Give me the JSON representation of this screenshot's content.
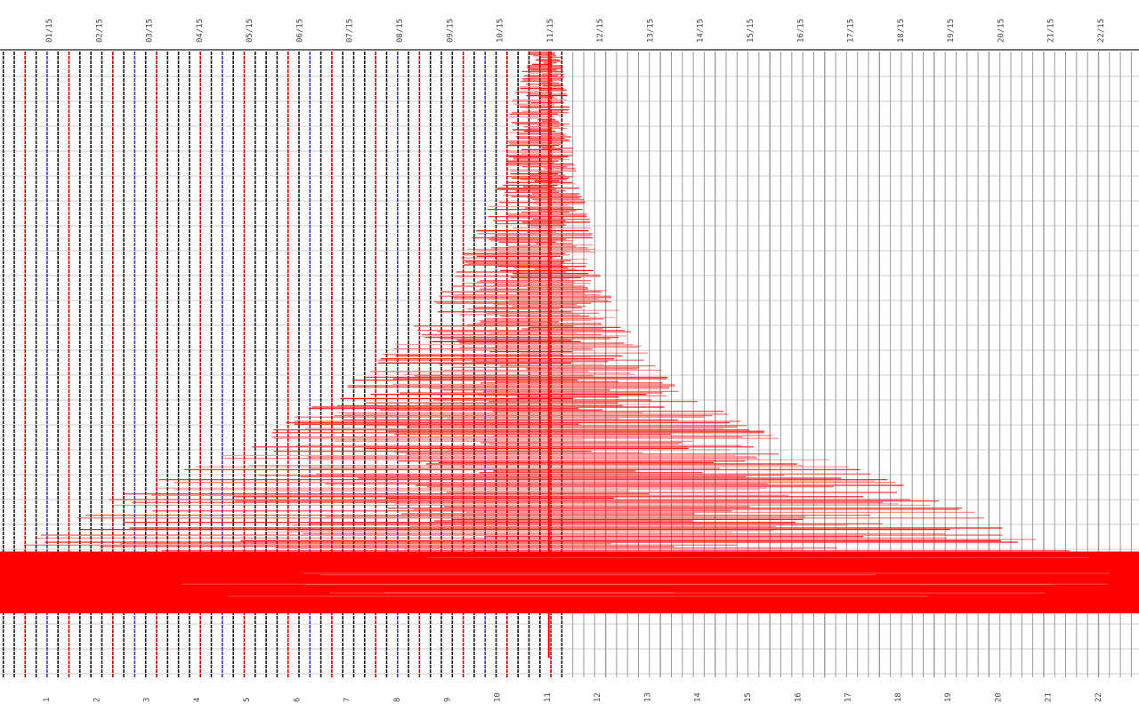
{
  "chart_data": {
    "type": "line",
    "title": "",
    "xlabel": "",
    "ylabel": "",
    "grid": true,
    "legend": "none",
    "top_tick_labels": [
      "01/15",
      "02/15",
      "03/15",
      "04/15",
      "05/15",
      "06/15",
      "07/15",
      "08/15",
      "09/15",
      "10/15",
      "11/15",
      "12/15",
      "13/15",
      "14/15",
      "15/15",
      "16/15",
      "17/15",
      "18/15",
      "19/15",
      "20/15",
      "21/15",
      "22/15"
    ],
    "bottom_tick_labels": [
      "1",
      "2",
      "3",
      "4",
      "5",
      "6",
      "7",
      "8",
      "9",
      "10",
      "11",
      "12",
      "13",
      "14",
      "15",
      "16",
      "17",
      "18",
      "19",
      "20",
      "21",
      "22"
    ],
    "trace_count": 104,
    "recorded_trace_count": 52,
    "trace_colors": {
      "black": "#1a1a1a",
      "red": "#c00000",
      "blue": "#3a3aa8",
      "empty": "#9a9a9a"
    },
    "trace_pattern": [
      "black",
      "black",
      "red",
      "black",
      "blue",
      "black",
      "red",
      "black"
    ],
    "series": [
      {
        "color": "#ff0000",
        "x_range": [
          0,
          22
        ],
        "center": 10.6,
        "profile": [
          {
            "depth": 0.0,
            "left": 10.2,
            "right": 10.85
          },
          {
            "depth": 0.1,
            "left": 9.85,
            "right": 11.0
          },
          {
            "depth": 0.2,
            "left": 9.75,
            "right": 11.1
          },
          {
            "depth": 0.3,
            "left": 9.3,
            "right": 11.4
          },
          {
            "depth": 0.4,
            "left": 8.7,
            "right": 11.6
          },
          {
            "depth": 0.5,
            "left": 7.9,
            "right": 12.2
          },
          {
            "depth": 0.6,
            "left": 6.6,
            "right": 13.1
          },
          {
            "depth": 0.7,
            "left": 4.8,
            "right": 15.3
          },
          {
            "depth": 0.8,
            "left": 2.0,
            "right": 18.3
          },
          {
            "depth": 0.9,
            "left": 0.0,
            "right": 21.0
          },
          {
            "depth": 1.0,
            "left": 0.0,
            "right": 22.0
          }
        ],
        "saturated_band_depth": [
          0.89,
          1.0
        ]
      }
    ]
  }
}
